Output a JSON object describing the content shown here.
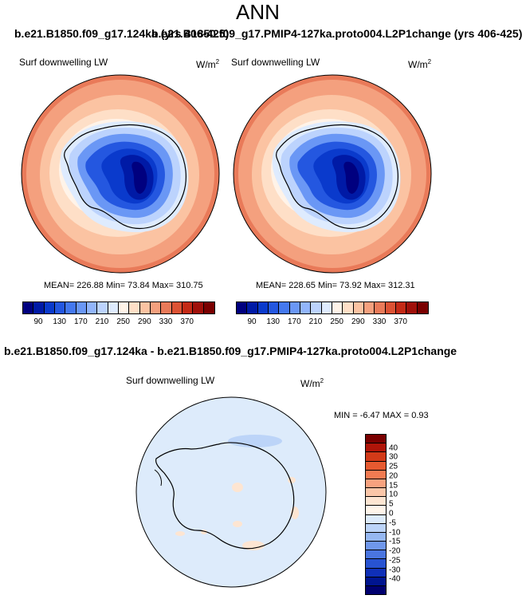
{
  "header": {
    "title": "ANN",
    "overlapped_left": "b.e21.B1850.f09_g17.124ka (yrs 406-425)",
    "overlapped_right": "b.e21.B1850.f09_g17.PMIP4-127ka.proto004.L2P1change (yrs 406-425)"
  },
  "panel_left": {
    "variable": "Surf downwelling LW",
    "units": "W/m",
    "units_exp": "2",
    "stats": "MEAN= 226.88  Min=  73.84  Max= 310.75"
  },
  "panel_right": {
    "variable": "Surf downwelling LW",
    "units": "W/m",
    "units_exp": "2",
    "stats": "MEAN= 228.65  Min=  73.92  Max= 312.31"
  },
  "colorbar_top": {
    "colors": [
      "#00007f",
      "#001aa6",
      "#0a3acc",
      "#2457e0",
      "#4478ee",
      "#6a97f5",
      "#92b5fb",
      "#bcd3fd",
      "#deebfe",
      "#fff3e8",
      "#fedfc7",
      "#fbc3a2",
      "#f4a07e",
      "#e97a59",
      "#dc5234",
      "#c42a16",
      "#a0100a",
      "#7a0000"
    ],
    "tick_labels": [
      "90",
      "130",
      "170",
      "210",
      "250",
      "290",
      "330",
      "370"
    ]
  },
  "diff_title": "b.e21.B1850.f09_g17.124ka - b.e21.B1850.f09_g17.PMIP4-127ka.proto004.L2P1change",
  "panel_diff": {
    "variable": "Surf downwelling LW",
    "units": "W/m",
    "units_exp": "2",
    "stats": "MIN =  -6.47 MAX =   0.93"
  },
  "colorbar_diff": {
    "colors": [
      "#7a0000",
      "#b01509",
      "#d23a18",
      "#e65a30",
      "#f27b52",
      "#f7a27f",
      "#fbc6a8",
      "#fde5d2",
      "#fff5ea",
      "#ddebfb",
      "#bcd4f8",
      "#96b8f2",
      "#6f97eb",
      "#4a75e0",
      "#2853d2",
      "#0f30b8",
      "#001590",
      "#000070"
    ],
    "tick_labels": [
      "40",
      "30",
      "25",
      "20",
      "15",
      "10",
      "5",
      "0",
      "-5",
      "-10",
      "-15",
      "-20",
      "-25",
      "-30",
      "-40"
    ]
  }
}
